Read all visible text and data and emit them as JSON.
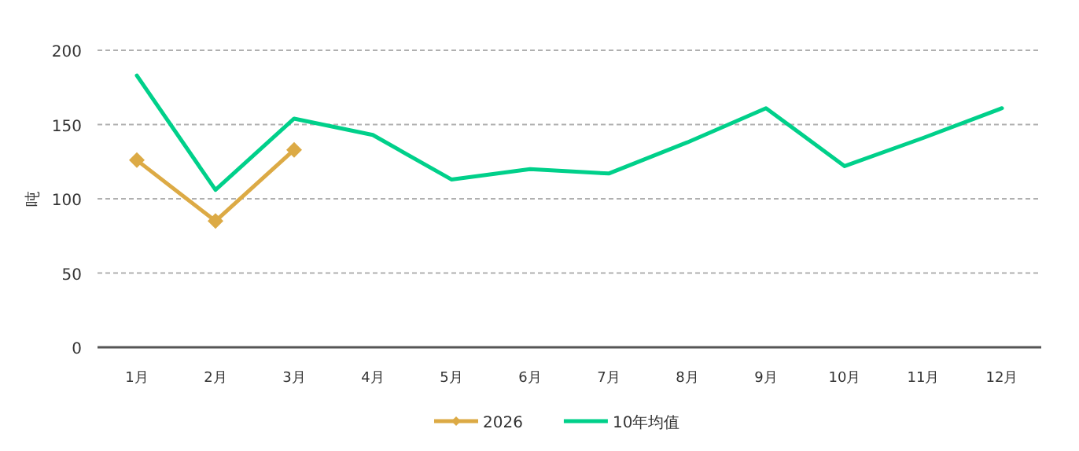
{
  "chart_data": {
    "type": "line",
    "ylabel": "吨",
    "categories": [
      "1月",
      "2月",
      "3月",
      "4月",
      "5月",
      "6月",
      "7月",
      "8月",
      "9月",
      "10月",
      "11月",
      "12月"
    ],
    "series": [
      {
        "name": "2026",
        "color": "#dcaa45",
        "marker": "diamond",
        "values": [
          126,
          85,
          133,
          null,
          null,
          null,
          null,
          null,
          null,
          null,
          null,
          null
        ]
      },
      {
        "name": "10年均值",
        "color": "#00d08a",
        "marker": "none",
        "values": [
          183,
          106,
          154,
          143,
          113,
          120,
          117,
          138,
          161,
          122,
          141,
          161
        ]
      }
    ],
    "ylim": [
      0,
      200
    ],
    "yticks": [
      0,
      50,
      100,
      150,
      200
    ],
    "grid": "y",
    "legend": "bottom",
    "line_style": "solid"
  }
}
